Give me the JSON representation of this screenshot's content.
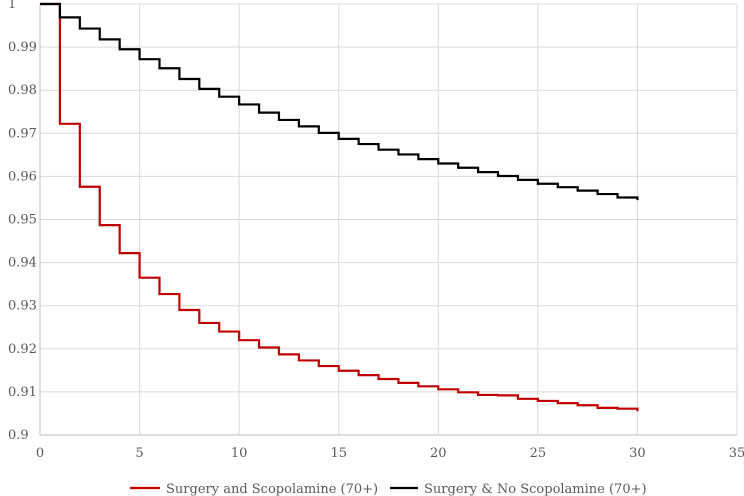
{
  "chart_data": {
    "type": "line",
    "step": true,
    "xlim": [
      0,
      35
    ],
    "ylim": [
      0.9,
      1
    ],
    "x_ticks": [
      0,
      5,
      10,
      15,
      20,
      25,
      30,
      35
    ],
    "y_ticks": [
      0.9,
      0.91,
      0.92,
      0.93,
      0.94,
      0.95,
      0.96,
      0.97,
      0.98,
      0.99,
      1
    ],
    "x_tick_labels": [
      "0",
      "5",
      "10",
      "15",
      "20",
      "25",
      "30",
      "35"
    ],
    "y_tick_labels": [
      "0.9",
      "0.91",
      "0.92",
      "0.93",
      "0.94",
      "0.95",
      "0.96",
      "0.97",
      "0.98",
      "0.99",
      "1"
    ],
    "grid": true,
    "legend_position": "bottom",
    "x": [
      0,
      1,
      2,
      3,
      4,
      5,
      6,
      7,
      8,
      9,
      10,
      11,
      12,
      13,
      14,
      15,
      16,
      17,
      18,
      19,
      20,
      21,
      22,
      23,
      24,
      25,
      26,
      27,
      28,
      29,
      30
    ],
    "series": [
      {
        "name": "Surgery and Scopolamine (70+)",
        "color": "#c00000",
        "values": [
          1,
          0.9722,
          0.9576,
          0.9487,
          0.9422,
          0.9365,
          0.9327,
          0.929,
          0.926,
          0.924,
          0.922,
          0.9203,
          0.9187,
          0.9173,
          0.916,
          0.9149,
          0.9139,
          0.913,
          0.9121,
          0.9113,
          0.9106,
          0.9099,
          0.9093,
          0.9092,
          0.9084,
          0.9079,
          0.9074,
          0.9069,
          0.9063,
          0.9061,
          0.9055
        ]
      },
      {
        "name": "Surgery & No Scopolamine (70+)",
        "color": "#000000",
        "values": [
          1,
          0.9969,
          0.9943,
          0.9918,
          0.9895,
          0.9872,
          0.9851,
          0.9826,
          0.9803,
          0.9785,
          0.9767,
          0.9748,
          0.9731,
          0.9716,
          0.9701,
          0.9687,
          0.9675,
          0.9662,
          0.9651,
          0.964,
          0.963,
          0.962,
          0.961,
          0.9601,
          0.9592,
          0.9583,
          0.9575,
          0.9567,
          0.9559,
          0.9551,
          0.9545
        ]
      }
    ]
  }
}
